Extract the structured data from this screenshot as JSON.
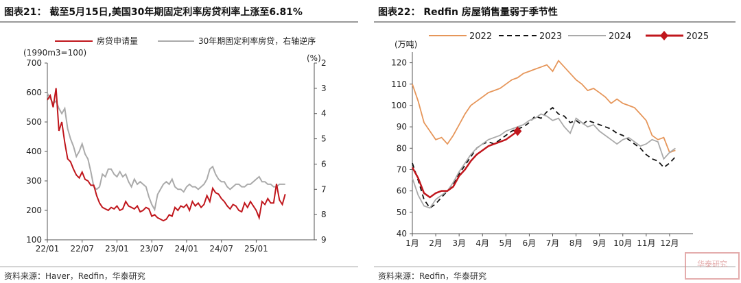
{
  "left": {
    "title": "图表21：  截至5月15日,美国30年期固定利率房贷利率上涨至6.81%",
    "source": "资料来源：Haver，Redfin，华泰研究",
    "chart_data": {
      "type": "line",
      "legend": [
        "房贷申请量",
        "30年期固定利率房贷，右轴逆序"
      ],
      "unit_left": "(1990m3=100)",
      "unit_right": "(%)",
      "x_ticks": [
        "22/01",
        "22/07",
        "23/01",
        "23/07",
        "24/01",
        "24/07",
        "25/01"
      ],
      "y_left_ticks": [
        "700",
        "600",
        "500",
        "400",
        "300",
        "200",
        "100"
      ],
      "y_right_ticks": [
        "2",
        "3",
        "4",
        "5",
        "6",
        "7",
        "8",
        "9"
      ],
      "ylim_left": [
        100,
        700
      ],
      "ylim_right_inverted": [
        2,
        9
      ],
      "series": [
        {
          "name": "房贷申请量",
          "color": "#c0161c",
          "axis": "left",
          "x": [
            0,
            0.5,
            1,
            1.5,
            2,
            2.5,
            3,
            3.5,
            4,
            4.5,
            5,
            5.5,
            6,
            6.5,
            7,
            7.5,
            8,
            8.5,
            9,
            9.5,
            10,
            10.5,
            11,
            11.5,
            12,
            12.5,
            13,
            13.5,
            14,
            14.5,
            15,
            15.5,
            16,
            16.5,
            17,
            17.5,
            18,
            18.5,
            19,
            19.5,
            20,
            20.5,
            21,
            21.5,
            22,
            22.5,
            23,
            23.5,
            24,
            24.5,
            25,
            25.5,
            26,
            26.5,
            27,
            27.5,
            28,
            28.5,
            29,
            29.5,
            30,
            30.5,
            31,
            31.5,
            32,
            32.5,
            33,
            33.5,
            34,
            34.5,
            35,
            35.5,
            36,
            36.5,
            37,
            37.5,
            38,
            38.5,
            39,
            39.5,
            40,
            40.5,
            41
          ],
          "y": [
            575,
            590,
            550,
            615,
            470,
            500,
            430,
            375,
            365,
            340,
            320,
            310,
            330,
            305,
            300,
            285,
            285,
            250,
            225,
            210,
            205,
            200,
            210,
            205,
            215,
            200,
            205,
            230,
            215,
            210,
            205,
            215,
            195,
            200,
            210,
            205,
            180,
            185,
            175,
            170,
            165,
            170,
            185,
            180,
            210,
            200,
            215,
            210,
            220,
            200,
            230,
            215,
            225,
            210,
            220,
            250,
            230,
            275,
            260,
            255,
            240,
            230,
            215,
            205,
            220,
            215,
            200,
            195,
            225,
            210,
            230,
            215,
            200,
            175,
            230,
            220,
            240,
            225,
            225,
            290,
            235,
            220,
            255
          ]
        },
        {
          "name": "30年期固定利率房贷，右轴逆序",
          "color": "#aaaaaa",
          "axis": "right",
          "x": [
            0,
            0.5,
            1,
            1.5,
            2,
            2.5,
            3,
            3.5,
            4,
            4.5,
            5,
            5.5,
            6,
            6.5,
            7,
            7.5,
            8,
            8.5,
            9,
            9.5,
            10,
            10.5,
            11,
            11.5,
            12,
            12.5,
            13,
            13.5,
            14,
            14.5,
            15,
            15.5,
            16,
            16.5,
            17,
            17.5,
            18,
            18.5,
            19,
            19.5,
            20,
            20.5,
            21,
            21.5,
            22,
            22.5,
            23,
            23.5,
            24,
            24.5,
            25,
            25.5,
            26,
            26.5,
            27,
            27.5,
            28,
            28.5,
            29,
            29.5,
            30,
            30.5,
            31,
            31.5,
            32,
            32.5,
            33,
            33.5,
            34,
            34.5,
            35,
            35.5,
            36,
            36.5,
            37,
            37.5,
            38,
            38.5,
            39,
            39.5,
            40,
            40.5,
            41
          ],
          "y": [
            3.2,
            3.4,
            3.6,
            3.5,
            3.8,
            4.0,
            3.8,
            4.6,
            5.0,
            5.3,
            5.7,
            5.5,
            5.2,
            5.6,
            5.8,
            6.3,
            6.9,
            7.0,
            6.9,
            6.4,
            6.5,
            6.2,
            6.2,
            6.4,
            6.5,
            6.3,
            6.5,
            6.4,
            6.7,
            6.9,
            6.6,
            6.8,
            6.7,
            6.8,
            6.9,
            7.3,
            7.6,
            7.8,
            7.2,
            7.0,
            6.8,
            6.7,
            6.8,
            6.6,
            6.9,
            7.0,
            7.0,
            7.1,
            6.9,
            6.8,
            6.9,
            6.9,
            7.0,
            6.9,
            6.8,
            6.6,
            6.2,
            6.1,
            6.4,
            6.6,
            6.7,
            6.7,
            6.9,
            7.0,
            6.9,
            6.8,
            6.8,
            6.9,
            6.9,
            6.8,
            6.8,
            6.7,
            6.6,
            6.5,
            6.7,
            6.7,
            6.8,
            6.8,
            6.9,
            6.9,
            6.8,
            6.8,
            6.8
          ]
        }
      ]
    }
  },
  "right": {
    "title": "图表22：  Redfin 房屋销售量弱于季节性",
    "source": "资料来源：Redfin，华泰研究",
    "chart_data": {
      "type": "line",
      "unit": "(万吨)",
      "x_ticks": [
        "1月",
        "2月",
        "3月",
        "4月",
        "5月",
        "6月",
        "7月",
        "8月",
        "9月",
        "10月",
        "11月",
        "12月"
      ],
      "ylim": [
        40,
        125
      ],
      "y_ticks": [
        "120",
        "110",
        "100",
        "90",
        "80",
        "70",
        "60",
        "50",
        "40"
      ],
      "series": [
        {
          "name": "2022",
          "color": "#e6965a",
          "dash": "none",
          "x": [
            1,
            1.25,
            1.5,
            1.75,
            2,
            2.25,
            2.5,
            2.75,
            3,
            3.25,
            3.5,
            3.75,
            4,
            4.25,
            4.5,
            4.75,
            5,
            5.25,
            5.5,
            5.75,
            6,
            6.25,
            6.5,
            6.75,
            7,
            7.25,
            7.5,
            7.75,
            8,
            8.25,
            8.5,
            8.75,
            9,
            9.25,
            9.5,
            9.75,
            10,
            10.25,
            10.5,
            10.75,
            11,
            11.25,
            11.5,
            11.75,
            12,
            12.25
          ],
          "y": [
            110,
            102,
            92,
            88,
            84,
            85,
            82,
            86,
            91,
            96,
            100,
            102,
            104,
            106,
            107,
            108,
            110,
            112,
            113,
            115,
            116,
            117,
            118,
            119,
            116,
            121,
            118,
            115,
            112,
            110,
            107,
            108,
            106,
            104,
            101,
            103,
            101,
            100,
            99,
            96,
            93,
            86,
            84,
            85,
            78,
            79
          ]
        },
        {
          "name": "2023",
          "color": "#111111",
          "dash": "7,5",
          "x": [
            1,
            1.25,
            1.5,
            1.75,
            2,
            2.25,
            2.5,
            2.75,
            3,
            3.25,
            3.5,
            3.75,
            4,
            4.25,
            4.5,
            4.75,
            5,
            5.25,
            5.5,
            5.75,
            6,
            6.25,
            6.5,
            6.75,
            7,
            7.25,
            7.5,
            7.75,
            8,
            8.25,
            8.5,
            8.75,
            9,
            9.25,
            9.5,
            9.75,
            10,
            10.25,
            10.5,
            10.75,
            11,
            11.25,
            11.5,
            11.75,
            12,
            12.25
          ],
          "y": [
            73,
            65,
            56,
            52,
            54,
            57,
            60,
            63,
            68,
            72,
            76,
            80,
            82,
            83,
            82,
            84,
            86,
            88,
            89,
            90,
            92,
            95,
            94,
            97,
            99,
            96,
            95,
            92,
            93,
            91,
            93,
            92,
            91,
            90,
            89,
            87,
            86,
            84,
            82,
            80,
            77,
            75,
            74,
            71,
            73,
            76
          ]
        },
        {
          "name": "2024",
          "color": "#aaaaaa",
          "dash": "none",
          "x": [
            1,
            1.25,
            1.5,
            1.75,
            2,
            2.25,
            2.5,
            2.75,
            3,
            3.25,
            3.5,
            3.75,
            4,
            4.25,
            4.5,
            4.75,
            5,
            5.25,
            5.5,
            5.75,
            6,
            6.25,
            6.5,
            6.75,
            7,
            7.25,
            7.5,
            7.75,
            8,
            8.25,
            8.5,
            8.75,
            9,
            9.25,
            9.5,
            9.75,
            10,
            10.25,
            10.5,
            10.75,
            11,
            11.25,
            11.5,
            11.75,
            12,
            12.25
          ],
          "y": [
            66,
            58,
            53,
            52,
            56,
            58,
            60,
            64,
            69,
            73,
            77,
            80,
            82,
            84,
            85,
            86,
            88,
            89,
            90,
            91,
            93,
            94,
            96,
            95,
            93,
            94,
            90,
            87,
            94,
            92,
            90,
            91,
            88,
            86,
            84,
            82,
            84,
            85,
            83,
            81,
            82,
            84,
            83,
            75,
            78,
            80
          ]
        },
        {
          "name": "2025",
          "color": "#c0161c",
          "dash": "none",
          "x": [
            1,
            1.25,
            1.5,
            1.75,
            2,
            2.25,
            2.5,
            2.75,
            3,
            3.25,
            3.5,
            3.75,
            4,
            4.25,
            4.5,
            4.75,
            5,
            5.25,
            5.5
          ],
          "y": [
            71,
            66,
            59,
            57,
            59,
            60,
            60,
            62,
            67,
            70,
            74,
            77,
            79,
            81,
            82,
            83,
            84,
            86,
            88
          ]
        }
      ]
    }
  }
}
